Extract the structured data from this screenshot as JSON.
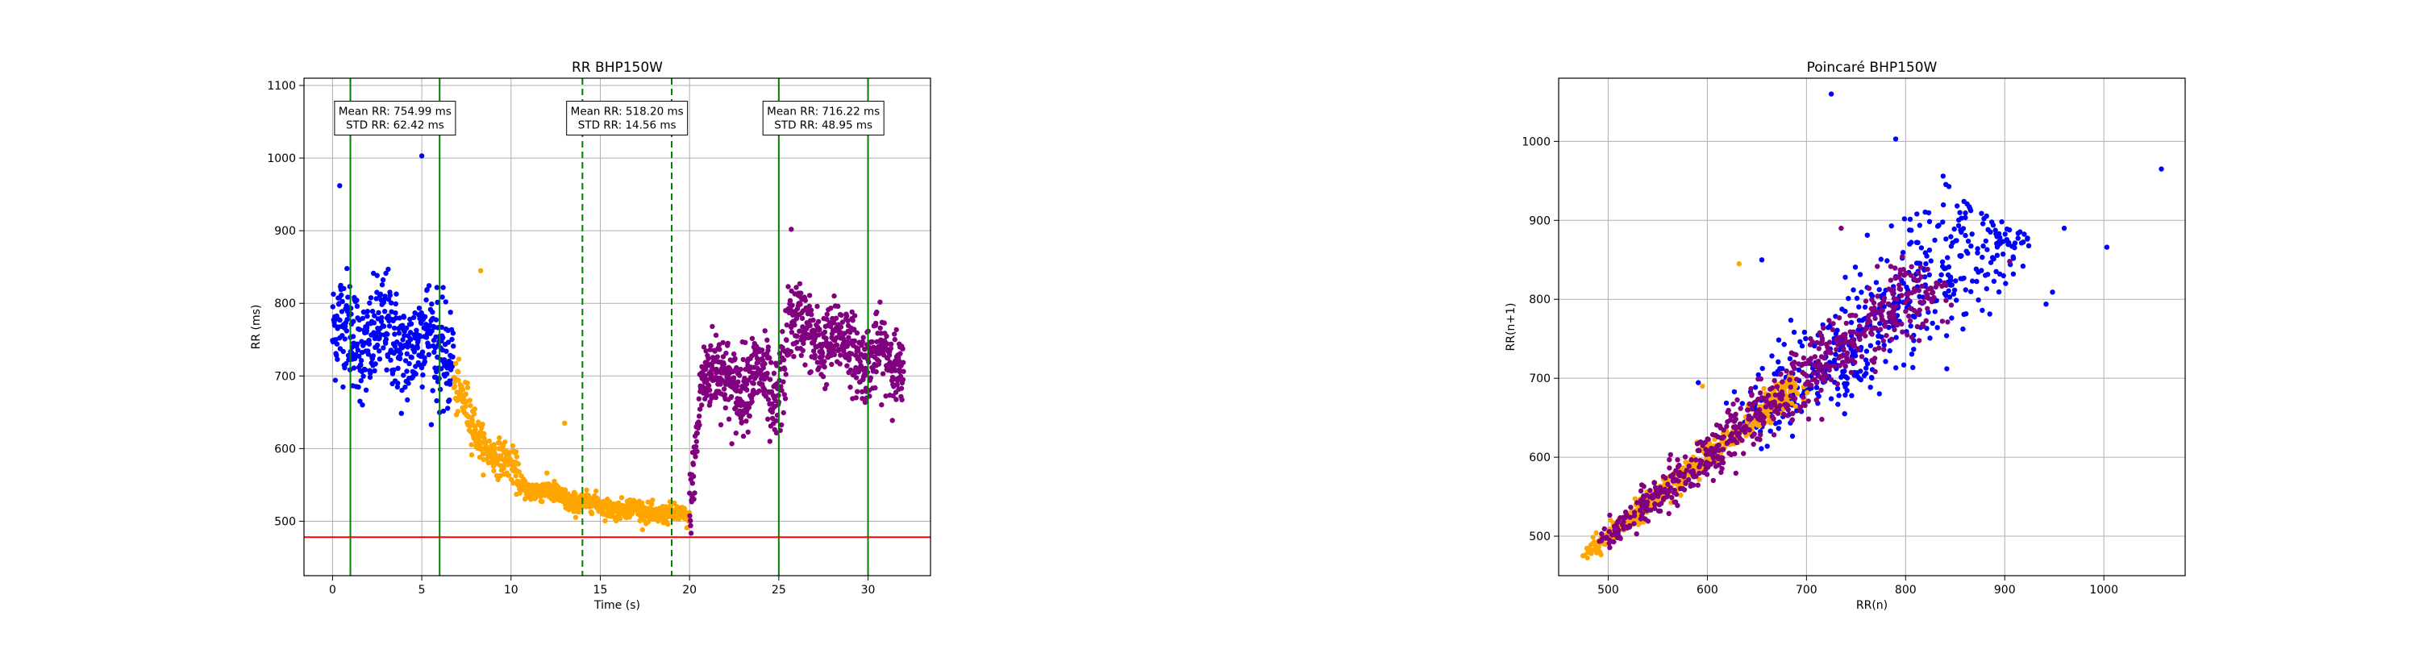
{
  "chart_data": [
    {
      "type": "scatter",
      "title": "RR BHP150W",
      "xlabel": "Time (s)",
      "ylabel": "RR (ms)",
      "xlim": [
        -1.6,
        33.5
      ],
      "ylim": [
        425,
        1110
      ],
      "xticks": [
        0,
        5,
        10,
        15,
        20,
        25,
        30
      ],
      "yticks": [
        500,
        600,
        700,
        800,
        900,
        1000,
        1100
      ],
      "grid": true,
      "hline": {
        "y": 478,
        "color": "#ff0000"
      },
      "vlines": [
        {
          "x": 1,
          "style": "solid",
          "color": "#008000"
        },
        {
          "x": 6,
          "style": "solid",
          "color": "#008000"
        },
        {
          "x": 14,
          "style": "dashed",
          "color": "#008000"
        },
        {
          "x": 19,
          "style": "dashed",
          "color": "#008000"
        },
        {
          "x": 25,
          "style": "solid",
          "color": "#008000"
        },
        {
          "x": 30,
          "style": "solid",
          "color": "#008000"
        }
      ],
      "annotations": [
        {
          "x": 3.5,
          "y": 1055,
          "lines": [
            "Mean RR: 754.99 ms",
            "STD RR: 62.42 ms"
          ]
        },
        {
          "x": 16.5,
          "y": 1055,
          "lines": [
            "Mean RR: 518.20 ms",
            "STD RR: 14.56 ms"
          ]
        },
        {
          "x": 27.5,
          "y": 1055,
          "lines": [
            "Mean RR: 716.22 ms",
            "STD RR: 48.95 ms"
          ]
        }
      ],
      "series": [
        {
          "color": "#0000ff",
          "approx": true,
          "segments": [
            {
              "x": [
                0,
                6.8
              ],
              "y": [
                760,
                740
              ],
              "spread": 60,
              "n": 430
            }
          ],
          "outliers": [
            [
              0.4,
              962
            ],
            [
              5,
              1003
            ]
          ]
        },
        {
          "color": "#ffa500",
          "approx": true,
          "segments": [
            {
              "x": [
                6.8,
                8
              ],
              "y": [
                690,
                620
              ],
              "spread": 28,
              "n": 70
            },
            {
              "x": [
                8,
                10.5
              ],
              "y": [
                620,
                560
              ],
              "spread": 20,
              "n": 140
            },
            {
              "x": [
                10.5,
                14
              ],
              "y": [
                550,
                525
              ],
              "spread": 12,
              "n": 220
            },
            {
              "x": [
                14,
                20
              ],
              "y": [
                525,
                505
              ],
              "spread": 11,
              "n": 330
            }
          ],
          "outliers": [
            [
              8.3,
              845
            ],
            [
              13,
              635
            ]
          ]
        },
        {
          "color": "#800080",
          "approx": true,
          "segments": [
            {
              "x": [
                20,
                20.6
              ],
              "y": [
                520,
                680
              ],
              "spread": 40,
              "n": 40
            },
            {
              "x": [
                20.6,
                24.5
              ],
              "y": [
                700,
                690
              ],
              "spread": 45,
              "n": 300
            },
            {
              "x": [
                24.5,
                25.5
              ],
              "y": [
                640,
                750
              ],
              "spread": 55,
              "n": 60
            },
            {
              "x": [
                25.5,
                32
              ],
              "y": [
                770,
                710
              ],
              "spread": 42,
              "n": 460
            }
          ],
          "outliers": [
            [
              25.7,
              902
            ]
          ]
        }
      ]
    },
    {
      "type": "scatter",
      "title": "Poincaré BHP150W",
      "xlabel": "RR(n)",
      "ylabel": "RR(n+1)",
      "xlim": [
        450,
        1082
      ],
      "ylim": [
        450,
        1080
      ],
      "xticks": [
        500,
        600,
        700,
        800,
        900,
        1000
      ],
      "yticks": [
        500,
        600,
        700,
        800,
        900,
        1000
      ],
      "grid": true,
      "series": [
        {
          "color": "#0000ff",
          "approx": true,
          "range": [
            640,
            900
          ],
          "spread": 45,
          "n": 520,
          "outliers": [
            [
              725,
              1060
            ],
            [
              790,
              1003
            ],
            [
              960,
              890
            ],
            [
              1003,
              866
            ],
            [
              1058,
              965
            ],
            [
              655,
              850
            ]
          ]
        },
        {
          "color": "#ffa500",
          "approx": true,
          "range": [
            478,
            690
          ],
          "spread": 18,
          "n": 480,
          "outliers": [
            [
              632,
              845
            ],
            [
              595,
              690
            ]
          ]
        },
        {
          "color": "#800080",
          "approx": true,
          "range": [
            495,
            830
          ],
          "spread": 30,
          "n": 650,
          "outliers": [
            [
              905,
              848
            ],
            [
              735,
              890
            ]
          ]
        }
      ]
    }
  ]
}
